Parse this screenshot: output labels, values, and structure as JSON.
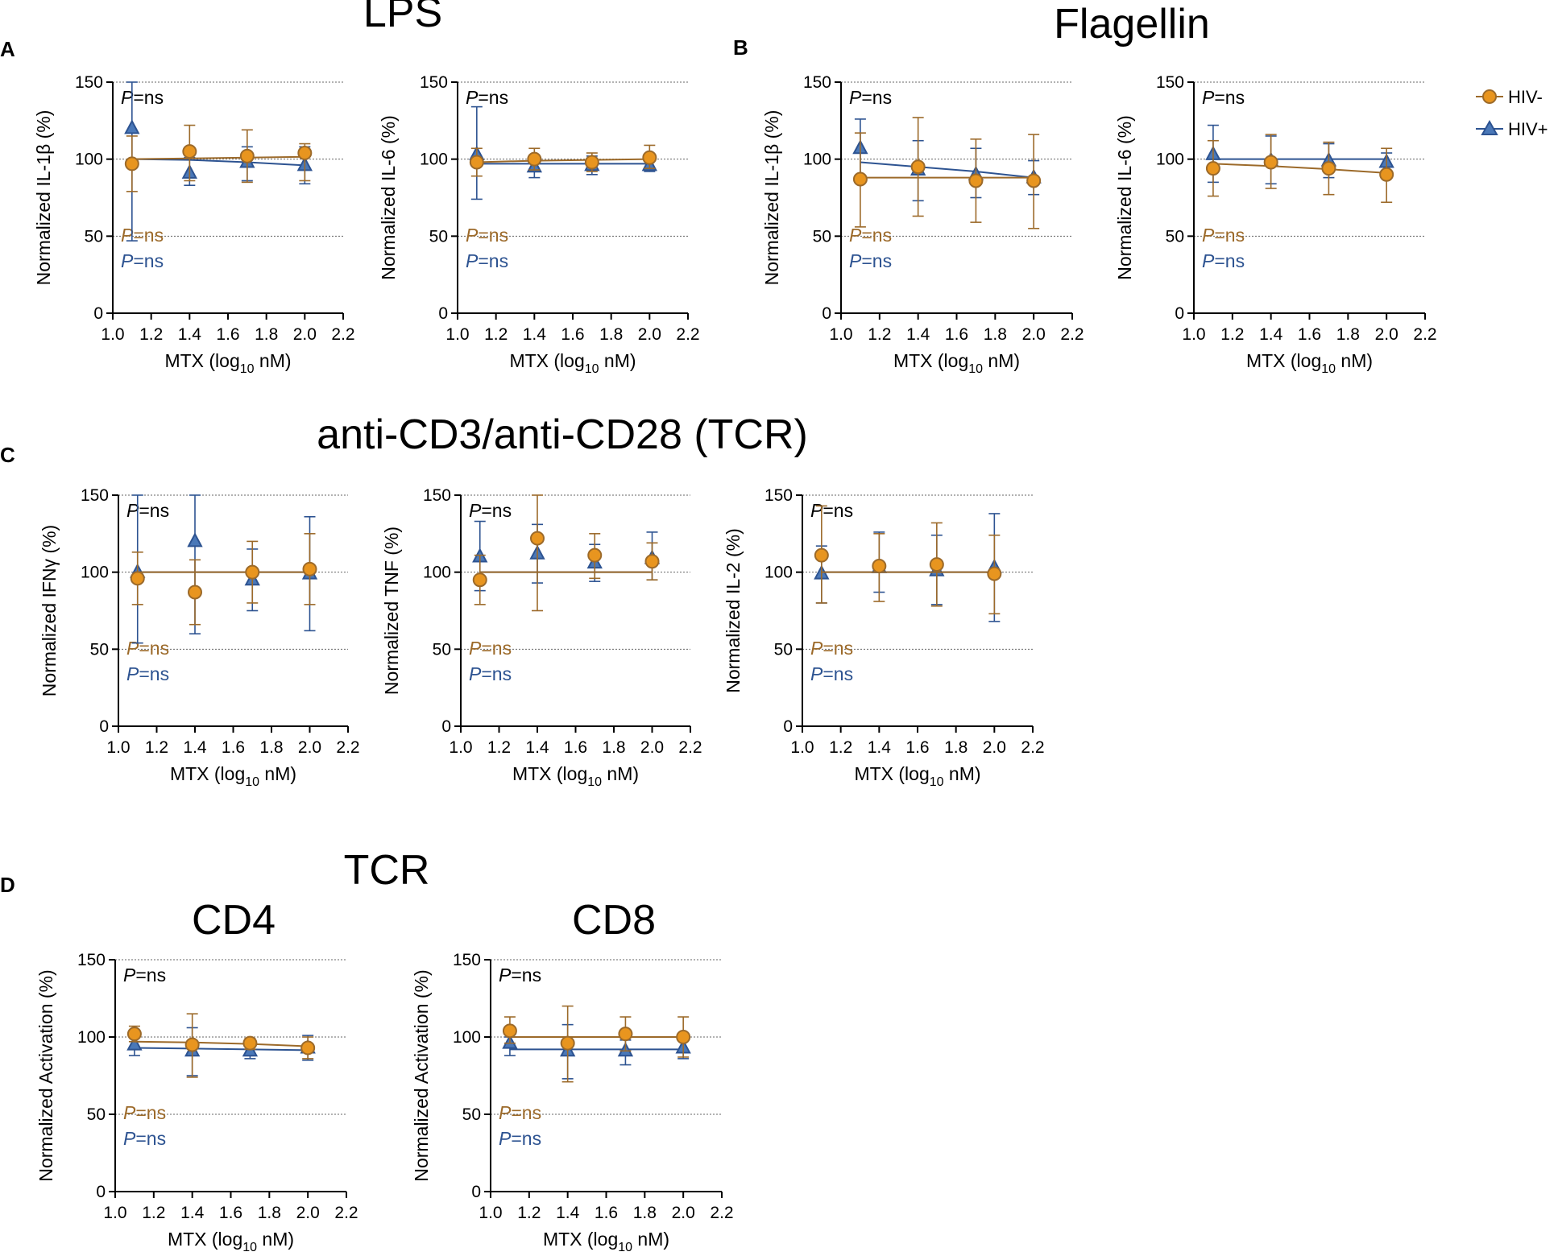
{
  "colors": {
    "hiv_neg": "#E8951F",
    "hiv_neg_dark": "#9C6A2A",
    "hiv_pos": "#4A78B8",
    "hiv_pos_dark": "#2D5391",
    "p_black": "#000000",
    "p_brown": "#9C6A2A",
    "p_blue": "#2D5391",
    "grid": "#666666"
  },
  "figure": {
    "titles": {
      "lps": "LPS",
      "flagellin": "Flagellin",
      "tcr_c": "anti-CD3/anti-CD28 (TCR)",
      "tcr_d": "TCR",
      "cd4": "CD4",
      "cd8": "CD8"
    },
    "panel_letters": [
      "A",
      "B",
      "C",
      "D"
    ],
    "legend": [
      {
        "label": "HIV-",
        "marker": "circle"
      },
      {
        "label": "HIV+",
        "marker": "triangle"
      }
    ],
    "p_label": "P",
    "p_value": "=ns",
    "xlabel_main": "MTX (log",
    "xlabel_sub": "10",
    "xlabel_tail": " nM)"
  },
  "chart_data": [
    {
      "id": "A1",
      "type": "scatter",
      "panel": "A",
      "ylabel": "Normalized IL-1β (%)",
      "x": [
        1.1,
        1.4,
        1.7,
        2.0
      ],
      "xlim": [
        1.0,
        2.2
      ],
      "ylim": [
        0,
        150
      ],
      "xticks": [
        "1.0",
        "1.2",
        "1.4",
        "1.6",
        "1.8",
        "2.0",
        "2.2"
      ],
      "yticks": [
        "0",
        "50",
        "100",
        "150"
      ],
      "grid_y": [
        50,
        100,
        150
      ],
      "p_overall": "P=ns",
      "p_hiv_neg": "P=ns",
      "p_hiv_pos": "P=ns",
      "series": [
        {
          "name": "HIV-",
          "values": [
            97,
            105,
            102,
            104
          ],
          "err_low": [
            79,
            86,
            85,
            86
          ],
          "err_high": [
            115,
            122,
            119,
            110
          ],
          "fit": [
            100,
            100.5,
            101,
            101.5
          ]
        },
        {
          "name": "HIV+",
          "values": [
            120,
            91,
            98,
            96
          ],
          "err_low": [
            47,
            83,
            86,
            84
          ],
          "err_high": [
            150,
            101,
            108,
            108
          ],
          "fit": [
            100,
            99.5,
            98,
            96
          ]
        }
      ]
    },
    {
      "id": "A2",
      "type": "scatter",
      "panel": "A",
      "ylabel": "Normalized IL-6 (%)",
      "x": [
        1.1,
        1.4,
        1.7,
        2.0
      ],
      "xlim": [
        1.0,
        2.2
      ],
      "ylim": [
        0,
        150
      ],
      "xticks": [
        "1.0",
        "1.2",
        "1.4",
        "1.6",
        "1.8",
        "2.0",
        "2.2"
      ],
      "yticks": [
        "0",
        "50",
        "100",
        "150"
      ],
      "grid_y": [
        50,
        100,
        150
      ],
      "p_overall": "P=ns",
      "p_hiv_neg": "P=ns",
      "p_hiv_pos": "P=ns",
      "series": [
        {
          "name": "HIV-",
          "values": [
            98,
            100,
            98,
            101
          ],
          "err_low": [
            89,
            93,
            92,
            94
          ],
          "err_high": [
            107,
            107,
            104,
            109
          ],
          "fit": [
            98,
            99,
            99.5,
            100
          ]
        },
        {
          "name": "HIV+",
          "values": [
            103,
            95,
            96,
            96
          ],
          "err_low": [
            74,
            88,
            90,
            92
          ],
          "err_high": [
            134,
            102,
            102,
            100
          ],
          "fit": [
            97,
            97,
            97,
            97
          ]
        }
      ]
    },
    {
      "id": "B1",
      "type": "scatter",
      "panel": "B",
      "ylabel": "Normalized IL-1β (%)",
      "x": [
        1.1,
        1.4,
        1.7,
        2.0
      ],
      "xlim": [
        1.0,
        2.2
      ],
      "ylim": [
        0,
        150
      ],
      "xticks": [
        "1.0",
        "1.2",
        "1.4",
        "1.6",
        "1.8",
        "2.0",
        "2.2"
      ],
      "yticks": [
        "0",
        "50",
        "100",
        "150"
      ],
      "grid_y": [
        50,
        100,
        150
      ],
      "p_overall": "P=ns",
      "p_hiv_neg": "P=ns",
      "p_hiv_pos": "P=ns",
      "series": [
        {
          "name": "HIV-",
          "values": [
            87,
            95,
            86,
            86
          ],
          "err_low": [
            56,
            63,
            59,
            55
          ],
          "err_high": [
            117,
            127,
            113,
            116
          ],
          "fit": [
            88,
            88,
            88,
            88
          ]
        },
        {
          "name": "HIV+",
          "values": [
            107,
            93,
            90,
            88
          ],
          "err_low": [
            88,
            73,
            75,
            77
          ],
          "err_high": [
            126,
            112,
            107,
            99
          ],
          "fit": [
            98,
            95,
            92,
            88
          ]
        }
      ]
    },
    {
      "id": "B2",
      "type": "scatter",
      "panel": "B",
      "ylabel": "Normalized IL-6 (%)",
      "x": [
        1.1,
        1.4,
        1.7,
        2.0
      ],
      "xlim": [
        1.0,
        2.2
      ],
      "ylim": [
        0,
        150
      ],
      "xticks": [
        "1.0",
        "1.2",
        "1.4",
        "1.6",
        "1.8",
        "2.0",
        "2.2"
      ],
      "yticks": [
        "0",
        "50",
        "100",
        "150"
      ],
      "grid_y": [
        50,
        100,
        150
      ],
      "p_overall": "P=ns",
      "p_hiv_neg": "P=ns",
      "p_hiv_pos": "P=ns",
      "series": [
        {
          "name": "HIV-",
          "values": [
            94,
            98,
            94,
            90
          ],
          "err_low": [
            76,
            81,
            77,
            72
          ],
          "err_high": [
            112,
            116,
            111,
            107
          ],
          "fit": [
            97,
            95.5,
            93.5,
            91
          ]
        },
        {
          "name": "HIV+",
          "values": [
            103,
            99,
            99,
            98
          ],
          "err_low": [
            85,
            84,
            88,
            90
          ],
          "err_high": [
            122,
            115,
            110,
            104
          ],
          "fit": [
            100,
            100,
            100,
            100
          ]
        }
      ]
    },
    {
      "id": "C1",
      "type": "scatter",
      "panel": "C",
      "ylabel": "Normalized IFNγ (%)",
      "x": [
        1.1,
        1.4,
        1.7,
        2.0
      ],
      "xlim": [
        1.0,
        2.2
      ],
      "ylim": [
        0,
        150
      ],
      "xticks": [
        "1.0",
        "1.2",
        "1.4",
        "1.6",
        "1.8",
        "2.0",
        "2.2"
      ],
      "yticks": [
        "0",
        "50",
        "100",
        "150"
      ],
      "grid_y": [
        50,
        100,
        150
      ],
      "p_overall": "P=ns",
      "p_hiv_neg": "P=ns",
      "p_hiv_pos": "P=ns",
      "series": [
        {
          "name": "HIV-",
          "values": [
            96,
            87,
            100,
            102
          ],
          "err_low": [
            79,
            66,
            80,
            79
          ],
          "err_high": [
            113,
            108,
            120,
            125
          ],
          "fit": [
            100,
            100,
            100,
            100
          ]
        },
        {
          "name": "HIV+",
          "values": [
            100,
            120,
            95,
            99
          ],
          "err_low": [
            54,
            60,
            75,
            62
          ],
          "err_high": [
            150,
            150,
            115,
            136
          ],
          "fit": [
            100,
            100,
            100,
            100
          ]
        }
      ]
    },
    {
      "id": "C2",
      "type": "scatter",
      "panel": "C",
      "ylabel": "Normalized TNF (%)",
      "x": [
        1.1,
        1.4,
        1.7,
        2.0
      ],
      "xlim": [
        1.0,
        2.2
      ],
      "ylim": [
        0,
        150
      ],
      "xticks": [
        "1.0",
        "1.2",
        "1.4",
        "1.6",
        "1.8",
        "2.0",
        "2.2"
      ],
      "yticks": [
        "0",
        "50",
        "100",
        "150"
      ],
      "grid_y": [
        50,
        100,
        150
      ],
      "p_overall": "P=ns",
      "p_hiv_neg": "P=ns",
      "p_hiv_pos": "P=ns",
      "series": [
        {
          "name": "HIV-",
          "values": [
            95,
            122,
            111,
            107
          ],
          "err_low": [
            79,
            75,
            96,
            95
          ],
          "err_high": [
            111,
            150,
            125,
            119
          ],
          "fit": [
            100,
            100,
            100,
            100
          ]
        },
        {
          "name": "HIV+",
          "values": [
            110,
            112,
            106,
            109
          ],
          "err_low": [
            88,
            93,
            94,
            95
          ],
          "err_high": [
            133,
            131,
            118,
            126
          ],
          "fit": [
            100,
            100,
            100,
            100
          ]
        }
      ]
    },
    {
      "id": "C3",
      "type": "scatter",
      "panel": "C",
      "ylabel": "Normalized IL-2 (%)",
      "x": [
        1.1,
        1.4,
        1.7,
        2.0
      ],
      "xlim": [
        1.0,
        2.2
      ],
      "ylim": [
        0,
        150
      ],
      "xticks": [
        "1.0",
        "1.2",
        "1.4",
        "1.6",
        "1.8",
        "2.0",
        "2.2"
      ],
      "yticks": [
        "0",
        "50",
        "100",
        "150"
      ],
      "grid_y": [
        50,
        100,
        150
      ],
      "p_overall": "P=ns",
      "p_hiv_neg": "P=ns",
      "p_hiv_pos": "P=ns",
      "series": [
        {
          "name": "HIV-",
          "values": [
            111,
            104,
            105,
            99
          ],
          "err_low": [
            80,
            81,
            78,
            73
          ],
          "err_high": [
            143,
            125,
            132,
            124
          ],
          "fit": [
            100,
            100,
            100,
            100
          ]
        },
        {
          "name": "HIV+",
          "values": [
            99,
            103,
            101,
            103
          ],
          "err_low": [
            80,
            87,
            79,
            68
          ],
          "err_high": [
            117,
            126,
            124,
            138
          ],
          "fit": [
            100,
            100,
            100,
            100
          ]
        }
      ]
    },
    {
      "id": "D1",
      "type": "scatter",
      "panel": "D",
      "ylabel": "Normalized Activation (%)",
      "x": [
        1.1,
        1.4,
        1.7,
        2.0
      ],
      "xlim": [
        1.0,
        2.2
      ],
      "ylim": [
        0,
        150
      ],
      "xticks": [
        "1.0",
        "1.2",
        "1.4",
        "1.6",
        "1.8",
        "2.0",
        "2.2"
      ],
      "yticks": [
        "0",
        "50",
        "100",
        "150"
      ],
      "grid_y": [
        50,
        100,
        150
      ],
      "p_overall": "P=ns",
      "p_hiv_neg": "P=ns",
      "p_hiv_pos": "P=ns",
      "series": [
        {
          "name": "HIV-",
          "values": [
            102,
            95,
            96,
            93
          ],
          "err_low": [
            97,
            74,
            92,
            86
          ],
          "err_high": [
            107,
            115,
            99,
            100
          ],
          "fit": [
            97,
            96.5,
            95.5,
            94
          ]
        },
        {
          "name": "HIV+",
          "values": [
            95,
            91,
            91,
            93
          ],
          "err_low": [
            88,
            75,
            86,
            85
          ],
          "err_high": [
            100,
            106,
            97,
            101
          ],
          "fit": [
            93,
            92.5,
            92,
            91.5
          ]
        }
      ]
    },
    {
      "id": "D2",
      "type": "scatter",
      "panel": "D",
      "ylabel": "Normalized Activation (%)",
      "x": [
        1.1,
        1.4,
        1.7,
        2.0
      ],
      "xlim": [
        1.0,
        2.2
      ],
      "ylim": [
        0,
        150
      ],
      "xticks": [
        "1.0",
        "1.2",
        "1.4",
        "1.6",
        "1.8",
        "2.0",
        "2.2"
      ],
      "yticks": [
        "0",
        "50",
        "100",
        "150"
      ],
      "grid_y": [
        50,
        100,
        150
      ],
      "p_overall": "P=ns",
      "p_hiv_neg": "P=ns",
      "p_hiv_pos": "P=ns",
      "series": [
        {
          "name": "HIV-",
          "values": [
            104,
            96,
            102,
            100
          ],
          "err_low": [
            96,
            71,
            91,
            87
          ],
          "err_high": [
            113,
            120,
            113,
            113
          ],
          "fit": [
            100,
            100,
            100,
            100
          ]
        },
        {
          "name": "HIV+",
          "values": [
            96,
            91,
            91,
            93
          ],
          "err_low": [
            88,
            73,
            82,
            86
          ],
          "err_high": [
            100,
            108,
            98,
            99
          ],
          "fit": [
            92,
            92,
            92,
            92
          ]
        }
      ]
    }
  ]
}
